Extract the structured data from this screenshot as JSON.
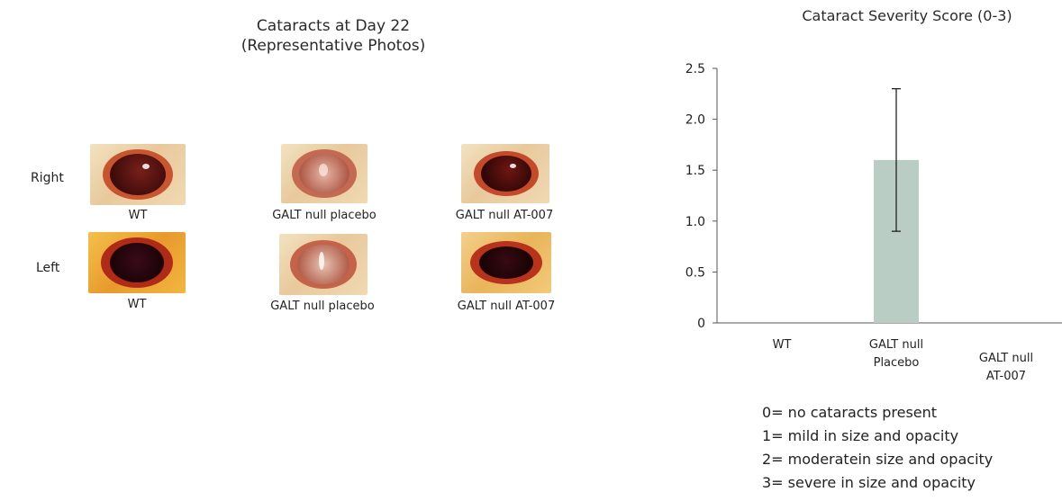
{
  "left_panel": {
    "title_line1": "Cataracts at Day 22",
    "title_line2": "(Representative Photos)",
    "row_labels": [
      "Right",
      "Left"
    ],
    "photos": [
      {
        "row": "Right",
        "caption": "WT",
        "appearance": "dark-red-pupil"
      },
      {
        "row": "Right",
        "caption": "GALT null placebo",
        "appearance": "cloudy-opacity"
      },
      {
        "row": "Right",
        "caption": "GALT null AT-007",
        "appearance": "dark-red-pupil"
      },
      {
        "row": "Left",
        "caption": "WT",
        "appearance": "dark-pupil"
      },
      {
        "row": "Left",
        "caption": "GALT null placebo",
        "appearance": "cloudy-opacity"
      },
      {
        "row": "Left",
        "caption": "GALT null AT-007",
        "appearance": "dark-pupil"
      }
    ]
  },
  "chart_data": {
    "type": "bar",
    "title": "Cataract Severity Score (0-3)",
    "categories": [
      [
        "WT"
      ],
      [
        "GALT null",
        "Placebo"
      ],
      [
        "GALT null",
        "AT-007"
      ]
    ],
    "values": [
      0,
      1.6,
      0
    ],
    "error_low": [
      null,
      0.9,
      null
    ],
    "error_high": [
      null,
      2.3,
      null
    ],
    "ylim": [
      0,
      2.5
    ],
    "yticks": [
      "0",
      "0.5",
      "1.0",
      "1.5",
      "2.0",
      "2.5"
    ],
    "bar_color": "#b9cdc4",
    "grid": false
  },
  "score_legend": [
    "0= no cataracts present",
    "1= mild  in size and opacity",
    "2= moderatein size and opacity",
    "3= severe in size and opacity"
  ]
}
